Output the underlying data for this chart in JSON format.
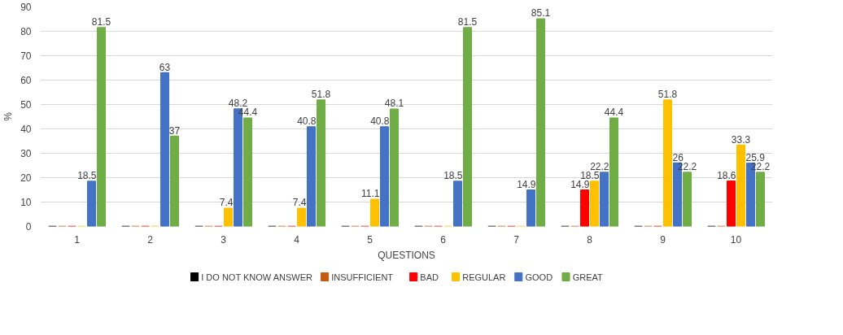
{
  "chart_data": {
    "type": "bar",
    "xlabel": "QUESTIONS",
    "ylabel": "%",
    "categories": [
      "1",
      "2",
      "3",
      "4",
      "5",
      "6",
      "7",
      "8",
      "9",
      "10"
    ],
    "series": [
      {
        "name": "I DO NOT KNOW ANSWER",
        "color": "#000000",
        "values": [
          0,
          0,
          0,
          0,
          0,
          0,
          0,
          0,
          0,
          0
        ]
      },
      {
        "name": "INSUFFICIENT",
        "color": "#c55a11",
        "values": [
          0,
          0,
          0,
          0,
          0,
          0,
          0,
          0,
          0,
          0
        ]
      },
      {
        "name": "BAD",
        "color": "#ff0000",
        "values": [
          0,
          0,
          0,
          0,
          0,
          0,
          0,
          14.9,
          0,
          18.6
        ],
        "value_labels": [
          null,
          null,
          null,
          null,
          null,
          null,
          null,
          "14.9",
          null,
          "18.6"
        ]
      },
      {
        "name": "REGULAR",
        "color": "#ffc000",
        "values": [
          0,
          0,
          7.4,
          7.4,
          11.1,
          0,
          0,
          18.5,
          51.8,
          33.3
        ],
        "value_labels": [
          null,
          null,
          "7.4",
          "7.4",
          "11.1",
          null,
          null,
          "18.5",
          "51.8",
          "33.3"
        ]
      },
      {
        "name": "GOOD",
        "color": "#4472c4",
        "values": [
          18.5,
          63,
          48.2,
          40.8,
          40.8,
          18.5,
          14.9,
          22.2,
          26,
          25.9
        ],
        "value_labels": [
          "18.5",
          "63",
          "48.2",
          "40.8",
          "40.8",
          "18.5",
          "14.9",
          "22.2",
          "26",
          "25.9"
        ]
      },
      {
        "name": "GREAT",
        "color": "#70ad47",
        "values": [
          81.5,
          37,
          44.4,
          51.8,
          48.1,
          81.5,
          85.1,
          44.4,
          22.2,
          22.2
        ],
        "value_labels": [
          "81.5",
          "37",
          "44.4",
          "51.8",
          "48.1",
          "81.5",
          "85.1",
          "44.4",
          "22.2",
          "22.2"
        ]
      }
    ],
    "ylim": [
      0,
      90
    ],
    "yticks": [
      0,
      10,
      20,
      30,
      40,
      50,
      60,
      70,
      80,
      90
    ],
    "grid": "y",
    "legend": "bottom"
  }
}
